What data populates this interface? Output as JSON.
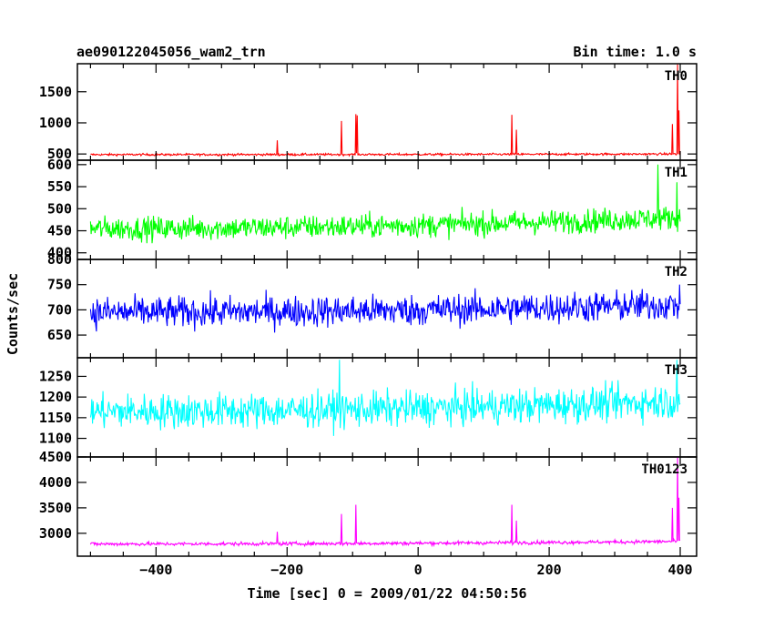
{
  "chart_data": {
    "type": "line",
    "title": "ae090122045056_wam2_trn",
    "subtitle": "Bin time: 1.0 s",
    "xlabel": "Time [sec] 0 = 2009/01/22 04:50:56",
    "ylabel": "Counts/sec",
    "xlim": [
      -520,
      425
    ],
    "xticks": [
      -400,
      -200,
      0,
      200,
      400
    ],
    "x_range": [
      -500,
      400
    ],
    "x_step": 1,
    "grid": false,
    "legend": "none",
    "panels": [
      {
        "name": "TH0",
        "color": "#ff0000",
        "ylim": [
          400,
          1950
        ],
        "yticks": [
          500,
          1000,
          1500
        ],
        "baseline": 490,
        "noise": 22,
        "trend": 10,
        "spikes": [
          {
            "x": -215,
            "y": 720
          },
          {
            "x": -117,
            "y": 1030
          },
          {
            "x": -95,
            "y": 1140
          },
          {
            "x": -93,
            "y": 1120
          },
          {
            "x": 143,
            "y": 1130
          },
          {
            "x": 150,
            "y": 890
          },
          {
            "x": 388,
            "y": 980
          },
          {
            "x": 396,
            "y": 1940
          },
          {
            "x": 398,
            "y": 1200
          }
        ]
      },
      {
        "name": "TH1",
        "color": "#00ff00",
        "ylim": [
          385,
          610
        ],
        "yticks": [
          400,
          450,
          500,
          550,
          600
        ],
        "baseline": 455,
        "noise": 35,
        "trend": 25,
        "spikes": [
          {
            "x": 366,
            "y": 600
          },
          {
            "x": 395,
            "y": 560
          }
        ]
      },
      {
        "name": "TH2",
        "color": "#0000ff",
        "ylim": [
          605,
          800
        ],
        "yticks": [
          650,
          700,
          750,
          800
        ],
        "baseline": 695,
        "noise": 40,
        "trend": 15,
        "spikes": []
      },
      {
        "name": "TH3",
        "color": "#00ffff",
        "ylim": [
          1055,
          1295
        ],
        "yticks": [
          1100,
          1150,
          1200,
          1250
        ],
        "baseline": 1165,
        "noise": 55,
        "trend": 25,
        "spikes": [
          {
            "x": -120,
            "y": 1290
          },
          {
            "x": 395,
            "y": 1290
          }
        ]
      },
      {
        "name": "TH0123",
        "color": "#ff00ff",
        "ylim": [
          2550,
          4500
        ],
        "yticks": [
          3000,
          3500,
          4000,
          4500
        ],
        "baseline": 2790,
        "noise": 45,
        "trend": 50,
        "spikes": [
          {
            "x": -215,
            "y": 3030
          },
          {
            "x": -117,
            "y": 3380
          },
          {
            "x": -95,
            "y": 3560
          },
          {
            "x": 143,
            "y": 3560
          },
          {
            "x": 150,
            "y": 3250
          },
          {
            "x": 388,
            "y": 3500
          },
          {
            "x": 396,
            "y": 4500
          },
          {
            "x": 398,
            "y": 3700
          }
        ]
      }
    ]
  }
}
